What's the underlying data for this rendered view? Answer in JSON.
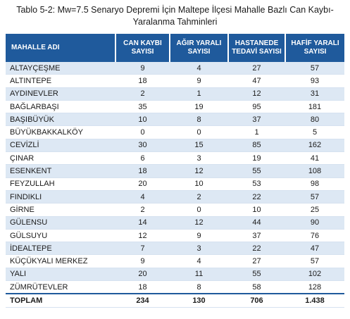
{
  "caption": {
    "line1": "Tablo 5-2: Mw=7.5 Senaryo Depremi İçin Maltepe İlçesi Mahalle Bazlı Can Kaybı-",
    "line2": "Yaralanma Tahminleri"
  },
  "colors": {
    "header_bg": "#1f5a9c",
    "row_alt_bg": "#dde8f4"
  },
  "headers": [
    [
      "MAHALLE ADI",
      ""
    ],
    [
      "CAN KAYBI",
      "SAYISI"
    ],
    [
      "AĞIR YARALI",
      "SAYISI"
    ],
    [
      "HASTANEDE",
      "TEDAVİ SAYISI"
    ],
    [
      "HAFİF YARALI",
      "SAYISI"
    ]
  ],
  "rows": [
    [
      "ALTAYÇEŞME",
      "9",
      "4",
      "27",
      "57"
    ],
    [
      "ALTINTEPE",
      "18",
      "9",
      "47",
      "93"
    ],
    [
      "AYDINEVLER",
      "2",
      "1",
      "12",
      "31"
    ],
    [
      "BAĞLARBAŞI",
      "35",
      "19",
      "95",
      "181"
    ],
    [
      "BAŞIBÜYÜK",
      "10",
      "8",
      "37",
      "80"
    ],
    [
      "BÜYÜKBAKKALKÖY",
      "0",
      "0",
      "1",
      "5"
    ],
    [
      "CEVİZLİ",
      "30",
      "15",
      "85",
      "162"
    ],
    [
      "ÇINAR",
      "6",
      "3",
      "19",
      "41"
    ],
    [
      "ESENKENT",
      "18",
      "12",
      "55",
      "108"
    ],
    [
      "FEYZULLAH",
      "20",
      "10",
      "53",
      "98"
    ],
    [
      "FINDIKLI",
      "4",
      "2",
      "22",
      "57"
    ],
    [
      "GİRNE",
      "2",
      "0",
      "10",
      "25"
    ],
    [
      "GÜLENSU",
      "14",
      "12",
      "44",
      "90"
    ],
    [
      "GÜLSUYU",
      "12",
      "9",
      "37",
      "76"
    ],
    [
      "İDEALTEPE",
      "7",
      "3",
      "22",
      "47"
    ],
    [
      "KÜÇÜKYALI MERKEZ",
      "9",
      "4",
      "27",
      "57"
    ],
    [
      "YALI",
      "20",
      "11",
      "55",
      "102"
    ],
    [
      "ZÜMRÜTEVLER",
      "18",
      "8",
      "58",
      "128"
    ]
  ],
  "total": [
    "TOPLAM",
    "234",
    "130",
    "706",
    "1.438"
  ]
}
